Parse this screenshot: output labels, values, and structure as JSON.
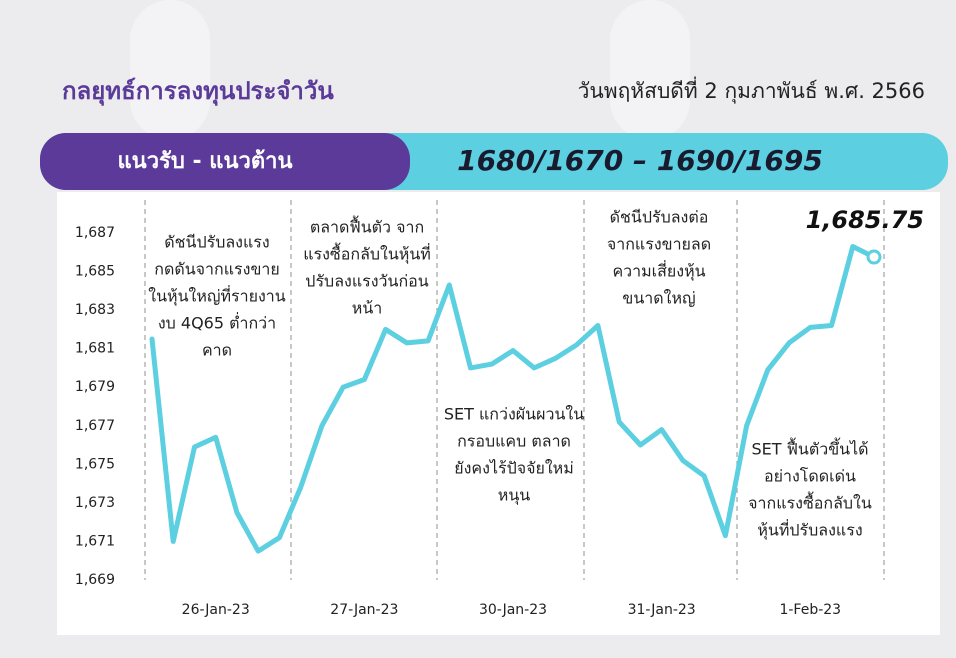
{
  "header": {
    "title": "กลยุทธ์การลงทุนประจำวัน",
    "date": "วันพฤหัสบดีที่ 2 กุมภาพันธ์ พ.ศ. 2566"
  },
  "banner": {
    "label": "แนวรับ - แนวต้าน",
    "levels": "1680/1670 – 1690/1695"
  },
  "chart_data": {
    "type": "line",
    "categories": [
      null,
      null,
      null,
      "26-Jan-23",
      null,
      null,
      null,
      null,
      null,
      null,
      "27-Jan-23",
      null,
      null,
      null,
      null,
      null,
      null,
      "30-Jan-23",
      null,
      null,
      null,
      null,
      null,
      null,
      "31-Jan-23",
      null,
      null,
      null,
      null,
      null,
      null,
      "1-Feb-23",
      null,
      null,
      null
    ],
    "values": [
      1681.5,
      1671.0,
      1675.9,
      1676.4,
      1672.5,
      1670.5,
      1671.2,
      1673.8,
      1677.0,
      1679.0,
      1679.4,
      1682.0,
      1681.3,
      1681.4,
      1684.3,
      1680.0,
      1680.2,
      1680.9,
      1680.0,
      1680.5,
      1681.2,
      1682.2,
      1677.2,
      1676.0,
      1676.8,
      1675.2,
      1674.4,
      1671.3,
      1677.0,
      1679.9,
      1681.3,
      1682.1,
      1682.2,
      1686.3,
      1685.75
    ],
    "value_labels": [
      null,
      null,
      null,
      null,
      null,
      null,
      null,
      null,
      null,
      null,
      null,
      null,
      null,
      null,
      null,
      null,
      null,
      null,
      null,
      null,
      null,
      null,
      null,
      null,
      null,
      null,
      null,
      null,
      null,
      null,
      null,
      null,
      null,
      null,
      "1,685.75"
    ],
    "color": "#5ccfe0",
    "ylim": [
      1669,
      1688
    ],
    "yticks": [
      {
        "value": 1669,
        "label": "1,669"
      },
      {
        "value": 1671,
        "label": "1,671"
      },
      {
        "value": 1673,
        "label": "1,673"
      },
      {
        "value": 1675,
        "label": "1,675"
      },
      {
        "value": 1677,
        "label": "1,677"
      },
      {
        "value": 1679,
        "label": "1,679"
      },
      {
        "value": 1681,
        "label": "1,681"
      },
      {
        "value": 1683,
        "label": "1,683"
      },
      {
        "value": 1685,
        "label": "1,685"
      },
      {
        "value": 1687,
        "label": "1,687"
      }
    ],
    "annotations": [
      [
        "ดัชนีปรับลงแรง",
        "กดดันจากแรงขาย",
        "ในหุ้นใหญ่ที่รายงาน",
        "งบ 4Q65 ต่ำกว่า",
        "คาด"
      ],
      [
        "ตลาดฟื้นตัว จาก",
        "แรงซื้อกลับในหุ้นที่",
        "ปรับลงแรงวันก่อน",
        "หน้า"
      ],
      [
        "SET แกว่งผันผวนใน",
        "กรอบแคบ ตลาด",
        "ยังคงไร้ปัจจัยใหม่",
        "หนุน"
      ],
      [
        "ดัชนีปรับลงต่อ",
        "จากแรงขายลด",
        "ความเสี่ยงหุ้น",
        "ขนาดใหญ่"
      ],
      [
        "SET ฟื้นตัวขึ้นได้",
        "อย่างโดดเด่น",
        "จากแรงซื้อกลับใน",
        "หุ้นที่ปรับลงแรง"
      ]
    ]
  }
}
